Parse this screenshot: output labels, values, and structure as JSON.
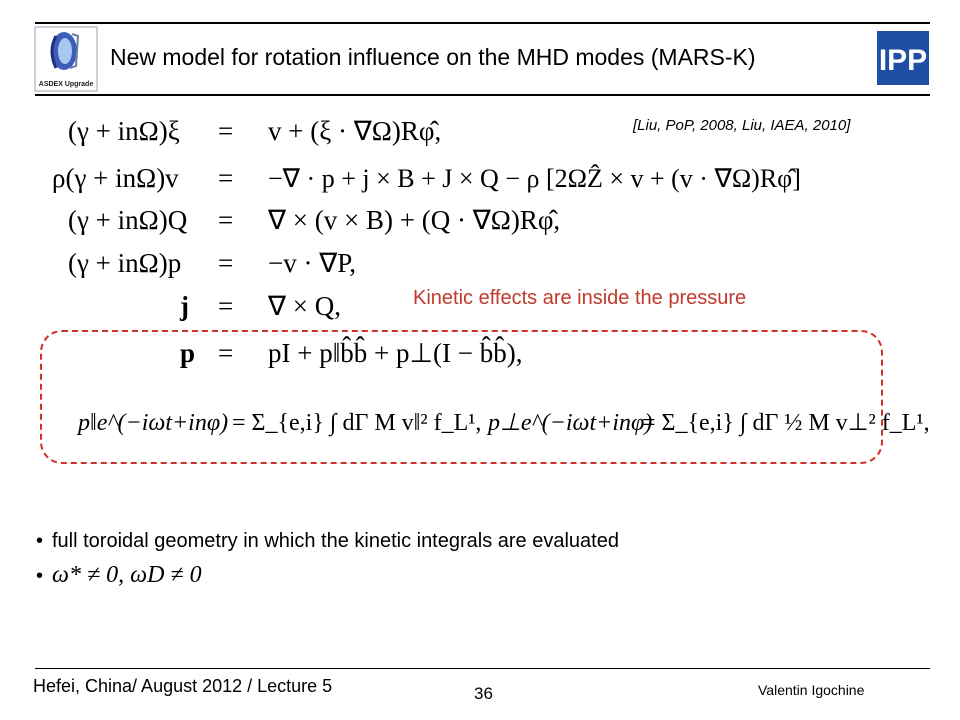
{
  "header": {
    "title": "New model for rotation influence on the MHD modes (MARS-K)",
    "left_logo": {
      "icon": "asdex-upgrade-logo",
      "label": "ASDEX Upgrade"
    },
    "right_logo": {
      "icon": "ipp-logo",
      "label": "IPP"
    }
  },
  "reference": "[Liu, PoP, 2008, Liu, IAEA, 2010]",
  "highlight_note": "Kinetic effects are inside the pressure",
  "highlight_color": "#c0392b",
  "equations": {
    "eq1": {
      "lhs": "(γ + inΩ)ξ",
      "eq": "=",
      "rhs": "v + (ξ · ∇Ω)Rφ̂,"
    },
    "eq2": {
      "lhs": "ρ(γ + inΩ)v",
      "eq": "=",
      "rhs": "−∇ · p + j × B + J × Q − ρ [2ΩẐ × v + (v · ∇Ω)Rφ̂]"
    },
    "eq3": {
      "lhs": "(γ + inΩ)Q",
      "eq": "=",
      "rhs": "∇ × (v × B) + (Q · ∇Ω)Rφ̂,"
    },
    "eq4": {
      "lhs": "(γ + inΩ)p",
      "eq": "=",
      "rhs": "−v · ∇P,"
    },
    "eq5": {
      "lhs": "j",
      "eq": "=",
      "rhs": "∇ × Q,"
    },
    "eq6": {
      "lhs": "p",
      "eq": "=",
      "rhs": "pI + p‖b̂b̂ + p⊥(I − b̂b̂),"
    },
    "kin_par": {
      "lhs": "p‖e^(−iωt+inφ)",
      "rhs": "= Σ_{e,i} ∫ dΓ M v‖² f_L¹,"
    },
    "kin_perp": {
      "lhs": "p⊥e^(−iωt+inφ)",
      "rhs": "= Σ_{e,i} ∫ dΓ ½ M v⊥² f_L¹,"
    }
  },
  "bullets": [
    "full toroidal geometry in which the kinetic integrals are evaluated",
    "ω* ≠ 0, ωD ≠ 0"
  ],
  "footer": {
    "left": "Hefei, China/ August 2012 / Lecture 5",
    "page": "36",
    "right": "Valentin Igochine"
  }
}
